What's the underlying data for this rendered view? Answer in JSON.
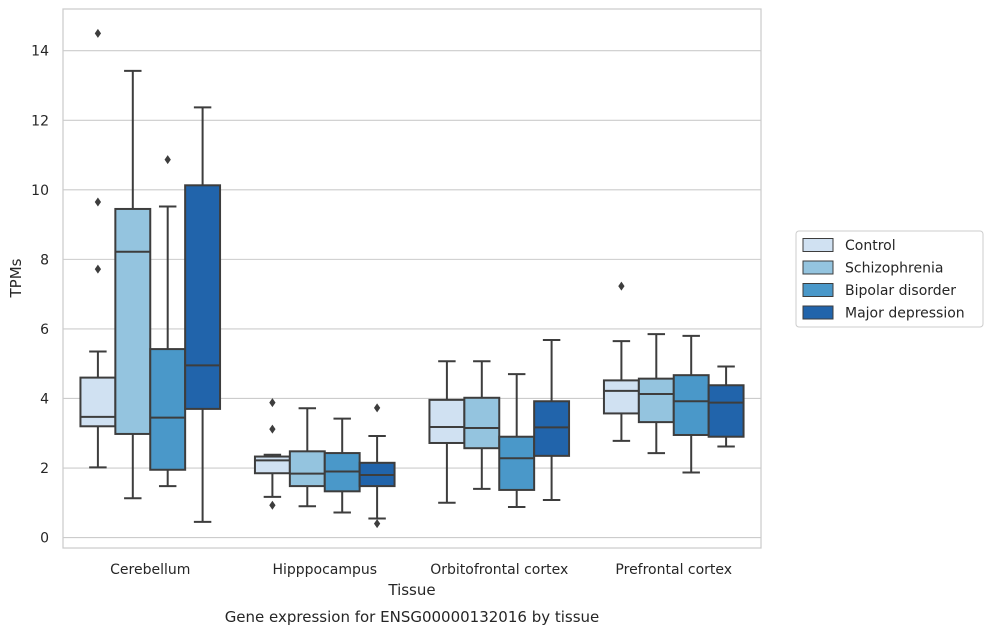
{
  "chart_data": {
    "type": "box",
    "title": "",
    "xlabel": "Tissue",
    "ylabel": "TPMs",
    "caption": "Gene expression for ENSG00000132016 by tissue",
    "ylim": [
      -0.3,
      15.2
    ],
    "yticks": [
      0,
      2,
      4,
      6,
      8,
      10,
      12,
      14
    ],
    "grid": "horizontal",
    "legend_position": "right",
    "categories": [
      "Cerebellum",
      "Hipppocampus",
      "Orbitofrontal cortex",
      "Prefrontal cortex"
    ],
    "series": [
      {
        "name": "Control",
        "color": "#d0e1f2",
        "boxes": [
          {
            "whislo": 2.02,
            "q1": 3.2,
            "med": 3.47,
            "q3": 4.6,
            "whishi": 5.35,
            "fliers": [
              7.72,
              9.65,
              14.5
            ]
          },
          {
            "whislo": 1.17,
            "q1": 1.85,
            "med": 2.22,
            "q3": 2.33,
            "whishi": 2.38,
            "fliers": [
              0.93,
              3.12,
              3.88
            ]
          },
          {
            "whislo": 1.0,
            "q1": 2.72,
            "med": 3.18,
            "q3": 3.96,
            "whishi": 5.07,
            "fliers": []
          },
          {
            "whislo": 2.78,
            "q1": 3.57,
            "med": 4.22,
            "q3": 4.52,
            "whishi": 5.65,
            "fliers": [
              7.23
            ]
          }
        ]
      },
      {
        "name": "Schizophrenia",
        "color": "#94c4df",
        "boxes": [
          {
            "whislo": 1.13,
            "q1": 2.98,
            "med": 8.22,
            "q3": 9.45,
            "whishi": 13.42,
            "fliers": []
          },
          {
            "whislo": 0.9,
            "q1": 1.48,
            "med": 1.84,
            "q3": 2.48,
            "whishi": 3.72,
            "fliers": []
          },
          {
            "whislo": 1.4,
            "q1": 2.57,
            "med": 3.15,
            "q3": 4.02,
            "whishi": 5.07,
            "fliers": []
          },
          {
            "whislo": 2.43,
            "q1": 3.32,
            "med": 4.13,
            "q3": 4.57,
            "whishi": 5.85,
            "fliers": []
          }
        ]
      },
      {
        "name": "Bipolar disorder",
        "color": "#4a98c9",
        "boxes": [
          {
            "whislo": 1.48,
            "q1": 1.95,
            "med": 3.45,
            "q3": 5.42,
            "whishi": 9.52,
            "fliers": [
              10.87
            ]
          },
          {
            "whislo": 0.72,
            "q1": 1.33,
            "med": 1.9,
            "q3": 2.43,
            "whishi": 3.42,
            "fliers": []
          },
          {
            "whislo": 0.88,
            "q1": 1.37,
            "med": 2.28,
            "q3": 2.9,
            "whishi": 4.7,
            "fliers": []
          },
          {
            "whislo": 1.87,
            "q1": 2.95,
            "med": 3.92,
            "q3": 4.67,
            "whishi": 5.8,
            "fliers": []
          }
        ]
      },
      {
        "name": "Major depression",
        "color": "#2164ab",
        "boxes": [
          {
            "whislo": 0.45,
            "q1": 3.7,
            "med": 4.95,
            "q3": 10.13,
            "whishi": 12.37,
            "fliers": []
          },
          {
            "whislo": 0.55,
            "q1": 1.48,
            "med": 1.8,
            "q3": 2.15,
            "whishi": 2.92,
            "fliers": [
              0.4,
              3.73
            ]
          },
          {
            "whislo": 1.08,
            "q1": 2.35,
            "med": 3.17,
            "q3": 3.92,
            "whishi": 5.68,
            "fliers": []
          },
          {
            "whislo": 2.62,
            "q1": 2.9,
            "med": 3.88,
            "q3": 4.38,
            "whishi": 4.92,
            "fliers": []
          }
        ]
      }
    ]
  }
}
